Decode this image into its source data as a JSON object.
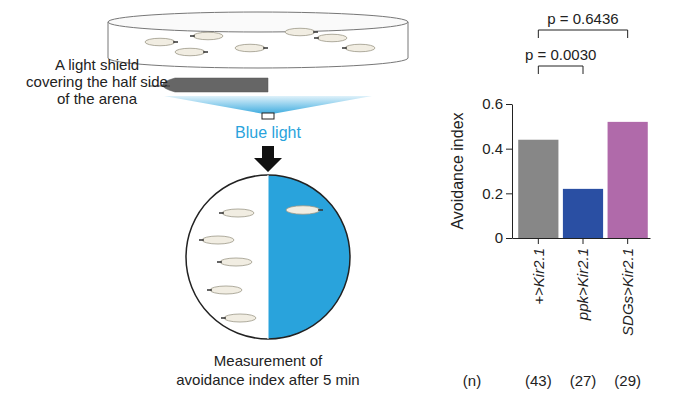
{
  "chart_data": {
    "type": "bar",
    "y_label": "Avoidance index",
    "categories": [
      "+>Kir2.1",
      "ppk>Kir2.1",
      "SDGs>Kir2.1"
    ],
    "values": [
      0.44,
      0.22,
      0.52
    ],
    "colors": [
      "#878787",
      "#2a4fa3",
      "#b06aaa"
    ],
    "ylim": [
      0,
      0.6
    ],
    "yticks": [
      0,
      0.2,
      0.4,
      0.6
    ],
    "sample_size_label": "(n)",
    "sample_sizes": [
      "(43)",
      "(27)",
      "(29)"
    ],
    "annotations": [
      {
        "text": "p = 0.0030",
        "between": [
          "+>Kir2.1",
          "ppk>Kir2.1"
        ]
      },
      {
        "text": "p = 0.6436",
        "between": [
          "+>Kir2.1",
          "SDGs>Kir2.1"
        ]
      }
    ]
  },
  "diagram": {
    "shield_label": [
      "A light shield",
      "covering the half side",
      "of the arena"
    ],
    "light_label": "Blue light",
    "measurement_label": [
      "Measurement of",
      "avoidance index after 5 min"
    ]
  }
}
